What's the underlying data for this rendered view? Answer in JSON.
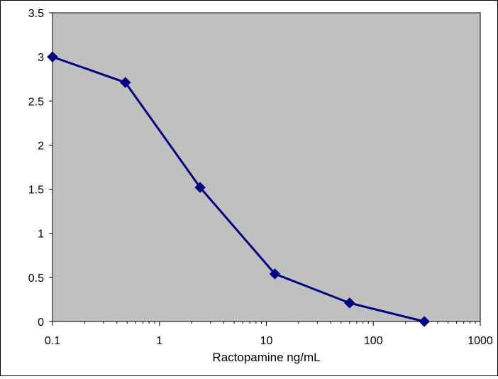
{
  "chart_data": {
    "type": "line",
    "title": "",
    "xlabel": "Ractopamine ng/mL",
    "ylabel": "",
    "x_scale": "log",
    "xlim": [
      0.1,
      1000
    ],
    "ylim": [
      0,
      3.5
    ],
    "x_ticks": [
      0.1,
      1,
      10,
      100,
      1000
    ],
    "x_tick_labels": [
      "0.1",
      "1",
      "10",
      "100",
      "1000"
    ],
    "y_ticks": [
      0,
      0.5,
      1,
      1.5,
      2,
      2.5,
      3,
      3.5
    ],
    "y_tick_labels": [
      "0",
      "0.5",
      "1",
      "1.5",
      "2",
      "2.5",
      "3",
      "3.5"
    ],
    "grid": false,
    "legend": "none",
    "plot_background": "#c0c0c0",
    "series": [
      {
        "color": "#000080",
        "marker": "diamond",
        "x": [
          0.1,
          0.48,
          2.4,
          12,
          60,
          300
        ],
        "y": [
          3.0,
          2.71,
          1.52,
          0.54,
          0.21,
          0.0
        ]
      }
    ]
  }
}
